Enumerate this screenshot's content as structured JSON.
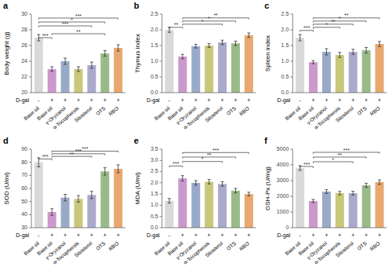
{
  "chart_data": [
    {
      "type": "bar",
      "title": "a",
      "ylabel": "Body weight (g)",
      "categories": [
        "Base oil",
        "Base oil",
        "γ-Oryzanol",
        "α-Tocopherols",
        "Sitosterol",
        "OTS",
        "RBO"
      ],
      "row_title": "D-gal",
      "row_labels": [
        "-",
        "+",
        "+",
        "+",
        "+",
        "+",
        "+"
      ],
      "colors": [
        "#d9d9d9",
        "#cc99cc",
        "#99aac9",
        "#c8c87a",
        "#aaaacc",
        "#99bb88",
        "#e8a870"
      ],
      "values": [
        27.0,
        23.0,
        24.0,
        23.0,
        23.5,
        25.0,
        25.7
      ],
      "errors": [
        0.4,
        0.3,
        0.4,
        0.3,
        0.4,
        0.35,
        0.4
      ],
      "ylim": [
        20,
        30
      ],
      "yticks": [
        20,
        22,
        24,
        26,
        28,
        30
      ],
      "annotations": [
        {
          "from": 0,
          "to": 6,
          "y": 29.5,
          "text": "***"
        },
        {
          "from": 0,
          "to": 5,
          "y": 29.0,
          "text": "*"
        },
        {
          "from": 0,
          "to": 4,
          "y": 28.5,
          "text": "***"
        },
        {
          "from": 1,
          "to": 5,
          "y": 27.5,
          "text": "**"
        },
        {
          "from": 0,
          "to": 1,
          "y": 27.0,
          "text": "***"
        }
      ]
    },
    {
      "type": "bar",
      "title": "b",
      "ylabel": "Thymus index",
      "categories": [
        "Base oil",
        "Base oil",
        "γ-Oryzanol",
        "α-Tocopherols",
        "Sitosterol",
        "OTS",
        "RBO"
      ],
      "row_title": "D-gal",
      "row_labels": [
        "-",
        "+",
        "+",
        "+",
        "+",
        "+",
        "+"
      ],
      "colors": [
        "#d9d9d9",
        "#cc99cc",
        "#99aac9",
        "#c8c87a",
        "#aaaacc",
        "#99bb88",
        "#e8a870"
      ],
      "values": [
        2.0,
        1.15,
        1.48,
        1.5,
        1.6,
        1.57,
        1.83
      ],
      "errors": [
        0.08,
        0.07,
        0.06,
        0.06,
        0.07,
        0.07,
        0.07
      ],
      "ylim": [
        0.0,
        2.5
      ],
      "yticks": [
        {
          "value": 0,
          "label": "0.0"
        },
        0.5,
        {
          "value": 1,
          "label": "1.0"
        },
        1.5,
        {
          "value": 2,
          "label": "2.0"
        },
        2.5
      ],
      "annotations": [
        {
          "from": 1,
          "to": 6,
          "y": 2.38,
          "text": "**"
        },
        {
          "from": 1,
          "to": 5,
          "y": 2.28,
          "text": "*"
        },
        {
          "from": 1,
          "to": 4,
          "y": 2.18,
          "text": "*"
        },
        {
          "from": 0,
          "to": 1,
          "y": 2.08,
          "text": "**"
        }
      ]
    },
    {
      "type": "bar",
      "title": "c",
      "ylabel": "Spleen index",
      "categories": [
        "Base oil",
        "Base oil",
        "γ-Oryzanol",
        "α-Tocopherols",
        "Sitosterol",
        "OTS",
        "RBO"
      ],
      "row_title": "D-gal",
      "row_labels": [
        "-",
        "+",
        "+",
        "+",
        "+",
        "+",
        "+"
      ],
      "colors": [
        "#d9d9d9",
        "#cc99cc",
        "#99aac9",
        "#c8c87a",
        "#aaaacc",
        "#99bb88",
        "#e8a870"
      ],
      "values": [
        1.75,
        0.97,
        1.3,
        1.2,
        1.3,
        1.35,
        1.55
      ],
      "errors": [
        0.1,
        0.05,
        0.1,
        0.08,
        0.08,
        0.09,
        0.08
      ],
      "ylim": [
        0.0,
        2.5
      ],
      "yticks": [
        {
          "value": 0,
          "label": "0.0"
        },
        0.5,
        {
          "value": 1,
          "label": "1.0"
        },
        1.5,
        {
          "value": 2,
          "label": "2.0"
        },
        2.5
      ],
      "annotations": [
        {
          "from": 1,
          "to": 6,
          "y": 2.38,
          "text": "**"
        },
        {
          "from": 1,
          "to": 5,
          "y": 2.28,
          "text": "*"
        },
        {
          "from": 1,
          "to": 4,
          "y": 2.18,
          "text": "**"
        },
        {
          "from": 1,
          "to": 3,
          "y": 2.08,
          "text": "*"
        },
        {
          "from": 0,
          "to": 1,
          "y": 1.98,
          "text": "***"
        }
      ]
    },
    {
      "type": "bar",
      "title": "d",
      "ylabel": "SOD (U/ml)",
      "categories": [
        "Base oil",
        "Base oil",
        "γ-Oryzanol",
        "α-Tocopherols",
        "Sitosterol",
        "OTS",
        "RBO"
      ],
      "row_title": "D-gal",
      "row_labels": [
        "-",
        "+",
        "+",
        "+",
        "+",
        "+",
        "+"
      ],
      "colors": [
        "#d9d9d9",
        "#cc99cc",
        "#99aac9",
        "#c8c87a",
        "#aaaacc",
        "#99bb88",
        "#e8a870"
      ],
      "values": [
        80.0,
        42.0,
        53.0,
        52.0,
        55.0,
        73.0,
        75.0
      ],
      "errors": [
        3.5,
        2.5,
        2.5,
        2.5,
        2.8,
        2.8,
        3.0
      ],
      "ylim": [
        30,
        90
      ],
      "yticks": [
        30,
        40,
        50,
        60,
        70,
        80,
        90
      ],
      "annotations": [
        {
          "from": 1,
          "to": 6,
          "y": 88.5,
          "text": "***"
        },
        {
          "from": 1,
          "to": 5,
          "y": 86.5,
          "text": "***"
        },
        {
          "from": 1,
          "to": 4,
          "y": 84.5,
          "text": "**"
        },
        {
          "from": 0,
          "to": 1,
          "y": 82.5,
          "text": "***"
        }
      ]
    },
    {
      "type": "bar",
      "title": "e",
      "ylabel": "MDA (U/ml)",
      "categories": [
        "Base oil",
        "Base oil",
        "γ-Oryzanol",
        "α-Tocopherols",
        "Sitosterol",
        "OTS",
        "RBO"
      ],
      "row_title": "D-gal",
      "row_labels": [
        "-",
        "+",
        "+",
        "+",
        "+",
        "+",
        "+"
      ],
      "colors": [
        "#d9d9d9",
        "#cc99cc",
        "#99aac9",
        "#c8c87a",
        "#aaaacc",
        "#99bb88",
        "#e8a870"
      ],
      "values": [
        1.2,
        2.2,
        2.0,
        2.05,
        1.95,
        1.65,
        1.5
      ],
      "errors": [
        0.1,
        0.12,
        0.1,
        0.1,
        0.1,
        0.1,
        0.08
      ],
      "ylim": [
        0.0,
        3.5
      ],
      "yticks": [
        {
          "value": 0,
          "label": "0.0"
        },
        0.5,
        {
          "value": 1,
          "label": "1.0"
        },
        1.5,
        {
          "value": 2,
          "label": "2.0"
        },
        2.5,
        {
          "value": 3,
          "label": "3.0"
        },
        3.5
      ],
      "annotations": [
        {
          "from": 1,
          "to": 6,
          "y": 3.35,
          "text": "***"
        },
        {
          "from": 1,
          "to": 5,
          "y": 3.15,
          "text": "**"
        },
        {
          "from": 1,
          "to": 4,
          "y": 2.95,
          "text": "*"
        },
        {
          "from": 0,
          "to": 1,
          "y": 2.75,
          "text": "***"
        }
      ]
    },
    {
      "type": "bar",
      "title": "f",
      "ylabel": "GSH-Px (U/mg)",
      "categories": [
        "Base oil",
        "Base oil",
        "γ-Oryzanol",
        "α-Tocopherols",
        "Sitosterol",
        "OTS",
        "RBO"
      ],
      "row_title": "D-gal",
      "row_labels": [
        "-",
        "+",
        "+",
        "+",
        "+",
        "+",
        "+"
      ],
      "colors": [
        "#d9d9d9",
        "#cc99cc",
        "#99aac9",
        "#c8c87a",
        "#aaaacc",
        "#99bb88",
        "#e8a870"
      ],
      "values": [
        3800.0,
        1700.0,
        2300.0,
        2200.0,
        2200.0,
        2700.0,
        2900.0
      ],
      "errors": [
        150.0,
        100.0,
        120.0,
        110.0,
        120.0,
        130.0,
        140.0
      ],
      "ylim": [
        0,
        5000
      ],
      "yticks": [
        0,
        1000,
        2000,
        3000,
        4000,
        5000
      ],
      "annotations": [
        {
          "from": 1,
          "to": 6,
          "y": 4800,
          "text": "***"
        },
        {
          "from": 1,
          "to": 5,
          "y": 4500,
          "text": "**"
        },
        {
          "from": 1,
          "to": 4,
          "y": 4200,
          "text": "*"
        },
        {
          "from": 0,
          "to": 1,
          "y": 3900,
          "text": "***"
        }
      ]
    }
  ]
}
